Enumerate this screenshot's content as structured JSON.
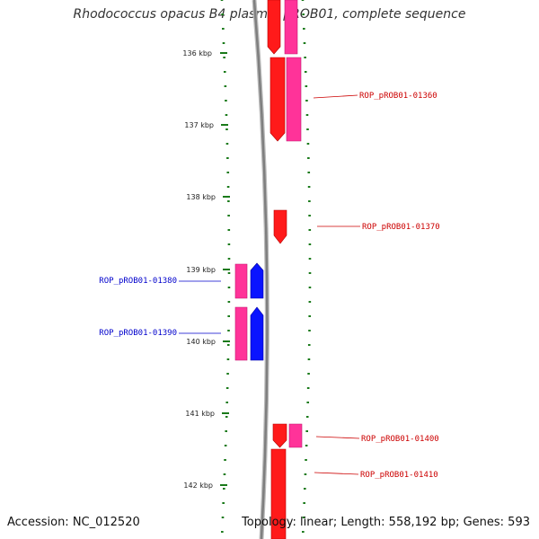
{
  "title": "Rhodococcus opacus B4 plasmid pROB01, complete sequence",
  "accession": "Accession: NC_012520",
  "summary": "Topology: linear; Length: 558,192 bp; Genes: 593",
  "colors": {
    "forward_cds": "#ff1a1a",
    "forward_rna": "#ff3399",
    "reverse_cds": "#0a14ff",
    "reverse_rna": "#ff3399",
    "backbone": "#888888",
    "ticks": "#1a7a1a",
    "label_forward": "#cc0000",
    "label_reverse": "#0000cc"
  },
  "kbp_ticks": [
    "136 kbp",
    "137 kbp",
    "138 kbp",
    "139 kbp",
    "140 kbp",
    "141 kbp",
    "142 kbp"
  ],
  "labels": {
    "l1360": "ROP_pROB01-01360",
    "l1370": "ROP_pROB01-01370",
    "l1380": "ROP_pROB01-01380",
    "l1390": "ROP_pROB01-01390",
    "l1400": "ROP_pROB01-01400",
    "l1410": "ROP_pROB01-01410"
  }
}
